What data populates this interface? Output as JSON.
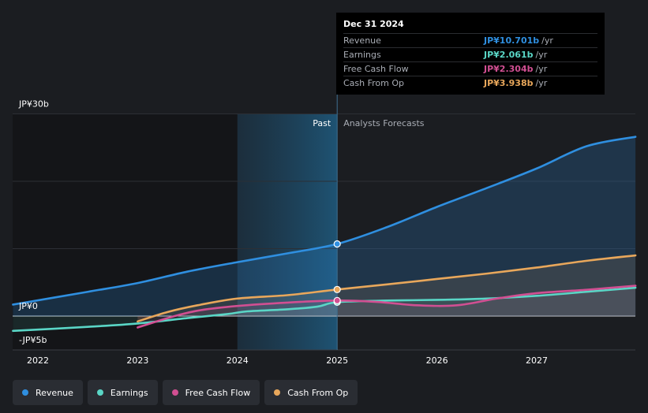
{
  "chart_data": {
    "type": "line",
    "title": "",
    "xlabel": "",
    "ylabel": "",
    "ylim": [
      -5,
      30
    ],
    "y_ticks": [
      {
        "value": 30,
        "label": "JP¥30b"
      },
      {
        "value": 0,
        "label": "JP¥0"
      },
      {
        "value": -5,
        "label": "-JP¥5b"
      }
    ],
    "x_ticks": [
      {
        "value": 2022,
        "label": "2022"
      },
      {
        "value": 2023,
        "label": "2023"
      },
      {
        "value": 2024,
        "label": "2024"
      },
      {
        "value": 2025,
        "label": "2025"
      },
      {
        "value": 2026,
        "label": "2026"
      },
      {
        "value": 2027,
        "label": "2027"
      }
    ],
    "xlim": [
      2021.75,
      2027.99
    ],
    "past_label": "Past",
    "forecast_label": "Analysts Forecasts",
    "forecast_start": 2025,
    "highlight_start": 2024,
    "series": [
      {
        "name": "Revenue",
        "color": "#2f8fe0",
        "x": [
          2021.75,
          2022.5,
          2023.0,
          2023.5,
          2024.0,
          2024.5,
          2025.0,
          2025.5,
          2026.0,
          2026.5,
          2027.0,
          2027.5,
          2027.99
        ],
        "values": [
          1.7,
          3.6,
          4.9,
          6.6,
          8.0,
          9.3,
          10.7,
          13.2,
          16.2,
          19.0,
          21.9,
          25.2,
          26.6
        ]
      },
      {
        "name": "Earnings",
        "color": "#5ad6c6",
        "x": [
          2021.75,
          2022.5,
          2023.0,
          2023.5,
          2023.9,
          2024.1,
          2024.5,
          2024.8,
          2025.0,
          2025.5,
          2026.0,
          2026.5,
          2027.0,
          2027.5,
          2027.99
        ],
        "values": [
          -2.2,
          -1.6,
          -1.1,
          -0.3,
          0.3,
          0.7,
          1.0,
          1.4,
          2.06,
          2.3,
          2.4,
          2.6,
          3.0,
          3.6,
          4.2
        ]
      },
      {
        "name": "Free Cash Flow",
        "color": "#d14f92",
        "x": [
          2023.0,
          2023.3,
          2023.6,
          2024.0,
          2024.5,
          2025.0,
          2025.4,
          2025.8,
          2026.2,
          2026.6,
          2027.0,
          2027.5,
          2027.99
        ],
        "values": [
          -1.7,
          -0.3,
          0.8,
          1.5,
          2.0,
          2.3,
          2.1,
          1.6,
          1.6,
          2.6,
          3.4,
          3.9,
          4.5
        ]
      },
      {
        "name": "Cash From Op",
        "color": "#e8a75b",
        "x": [
          2023.0,
          2023.3,
          2023.6,
          2024.0,
          2024.5,
          2025.0,
          2025.5,
          2026.0,
          2026.5,
          2027.0,
          2027.5,
          2027.99
        ],
        "values": [
          -0.8,
          0.6,
          1.6,
          2.6,
          3.1,
          3.94,
          4.7,
          5.5,
          6.3,
          7.2,
          8.2,
          9.0
        ]
      }
    ]
  },
  "tooltip": {
    "title": "Dec 31 2024",
    "rows": [
      {
        "label": "Revenue",
        "value": "JP¥10.701b",
        "unit": "/yr",
        "color": "#2f8fe0"
      },
      {
        "label": "Earnings",
        "value": "JP¥2.061b",
        "unit": "/yr",
        "color": "#5ad6c6"
      },
      {
        "label": "Free Cash Flow",
        "value": "JP¥2.304b",
        "unit": "/yr",
        "color": "#d14f92"
      },
      {
        "label": "Cash From Op",
        "value": "JP¥3.938b",
        "unit": "/yr",
        "color": "#e8a75b"
      }
    ]
  },
  "legend": [
    {
      "label": "Revenue",
      "color": "#2f8fe0"
    },
    {
      "label": "Earnings",
      "color": "#5ad6c6"
    },
    {
      "label": "Free Cash Flow",
      "color": "#d14f92"
    },
    {
      "label": "Cash From Op",
      "color": "#e8a75b"
    }
  ]
}
